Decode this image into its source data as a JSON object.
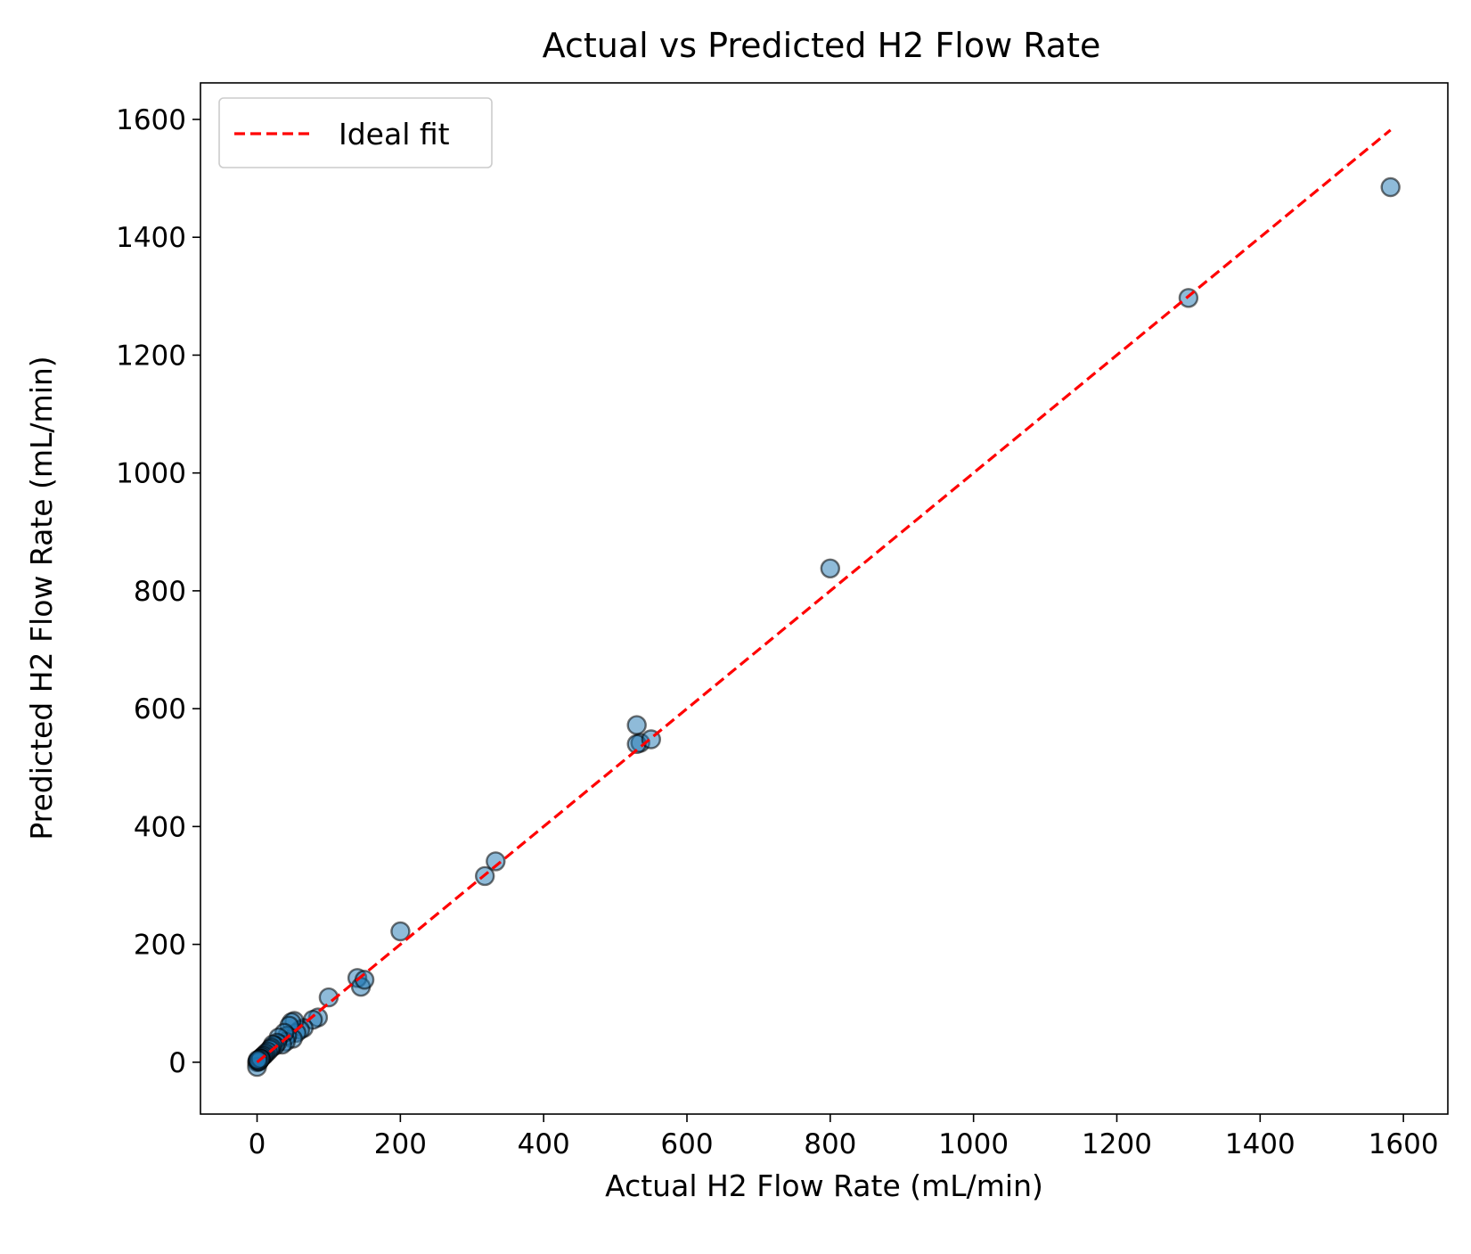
{
  "chart_data": {
    "type": "scatter",
    "title": "Actual vs Predicted H2 Flow Rate",
    "xlabel": "Actual H2 Flow Rate (mL/min)",
    "ylabel": "Predicted H2 Flow Rate (mL/min)",
    "xlim": [
      -79,
      1662
    ],
    "ylim": [
      -88,
      1662
    ],
    "xticks": [
      0,
      200,
      400,
      600,
      800,
      1000,
      1200,
      1400,
      1600
    ],
    "yticks": [
      0,
      200,
      400,
      600,
      800,
      1000,
      1200,
      1400,
      1600
    ],
    "grid": false,
    "legend": {
      "placement": "top-left",
      "entries": [
        "Ideal fit"
      ]
    },
    "colors": {
      "points": "#1f77b4",
      "point_edge": "#000000",
      "ideal_line": "#ff0000"
    },
    "ideal_line": {
      "name": "Ideal fit",
      "x": [
        0,
        1582
      ],
      "y": [
        0,
        1582
      ]
    },
    "series": [
      {
        "x": [
          1582,
          1300,
          800,
          530,
          535,
          530,
          550,
          333,
          318,
          200,
          100,
          140,
          145,
          150,
          85,
          78,
          65,
          60,
          55,
          52,
          48,
          50,
          45,
          42,
          40,
          38,
          35,
          30,
          28,
          25,
          22,
          20,
          18,
          15,
          12,
          10,
          8,
          6,
          5,
          4,
          3,
          2,
          1,
          0,
          0,
          2,
          3,
          5,
          1
        ],
        "y": [
          1485,
          1297,
          838,
          572,
          542,
          540,
          548,
          341,
          316,
          222,
          110,
          143,
          128,
          140,
          76,
          72,
          58,
          55,
          50,
          70,
          68,
          40,
          62,
          45,
          35,
          50,
          30,
          42,
          33,
          28,
          30,
          25,
          22,
          18,
          15,
          12,
          10,
          8,
          6,
          5,
          4,
          3,
          2,
          0,
          -8,
          1,
          2,
          6,
          4
        ]
      }
    ]
  }
}
